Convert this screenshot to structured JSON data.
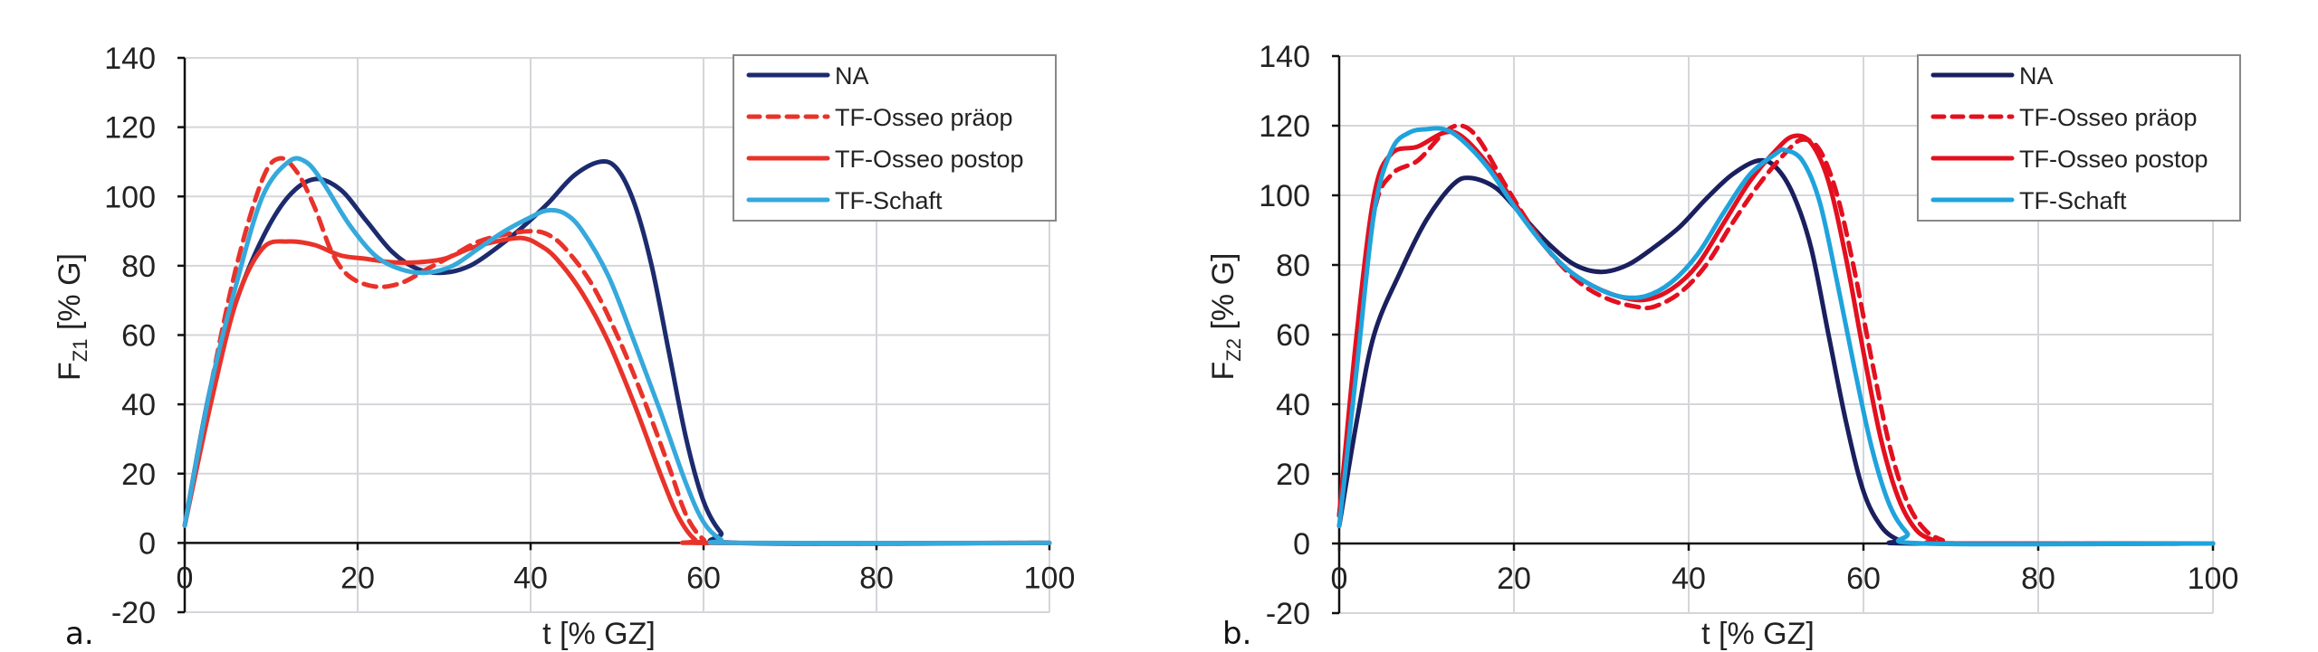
{
  "chart_data": [
    {
      "type": "line",
      "panel_label": "a.",
      "xlabel": "t [% GZ]",
      "ylabel_main": "F",
      "ylabel_sub": "Z1",
      "ylabel_unit": " [% G]",
      "xlim": [
        0,
        100
      ],
      "ylim": [
        -20,
        140
      ],
      "xticks": [
        0,
        20,
        40,
        60,
        80,
        100
      ],
      "yticks": [
        -20,
        0,
        20,
        40,
        60,
        80,
        100,
        120,
        140
      ],
      "grid": true,
      "legend_position": "top-right",
      "series": [
        {
          "name": "NA",
          "color": "#1c2b6e",
          "dashed": false,
          "points": [
            [
              0,
              5
            ],
            [
              3,
              45
            ],
            [
              6,
              70
            ],
            [
              9,
              88
            ],
            [
              12,
              100
            ],
            [
              15,
              105
            ],
            [
              18,
              102
            ],
            [
              21,
              93
            ],
            [
              24,
              84
            ],
            [
              27,
              79
            ],
            [
              30,
              78
            ],
            [
              33,
              80
            ],
            [
              36,
              85
            ],
            [
              39,
              91
            ],
            [
              42,
              98
            ],
            [
              45,
              106
            ],
            [
              48,
              110
            ],
            [
              50,
              108
            ],
            [
              52,
              98
            ],
            [
              54,
              80
            ],
            [
              56,
              55
            ],
            [
              58,
              30
            ],
            [
              60,
              12
            ],
            [
              62,
              3
            ],
            [
              64,
              0
            ],
            [
              100,
              0
            ]
          ]
        },
        {
          "name": "TF-Osseo präop",
          "color": "#e8332a",
          "dashed": true,
          "points": [
            [
              0,
              5
            ],
            [
              3,
              45
            ],
            [
              6,
              80
            ],
            [
              9,
              105
            ],
            [
              11,
              111
            ],
            [
              13,
              107
            ],
            [
              15,
              97
            ],
            [
              17,
              84
            ],
            [
              19,
              77
            ],
            [
              22,
              74
            ],
            [
              25,
              75
            ],
            [
              28,
              79
            ],
            [
              31,
              83
            ],
            [
              34,
              87
            ],
            [
              37,
              89
            ],
            [
              40,
              90
            ],
            [
              42,
              89
            ],
            [
              44,
              85
            ],
            [
              47,
              75
            ],
            [
              50,
              60
            ],
            [
              53,
              42
            ],
            [
              56,
              22
            ],
            [
              58,
              8
            ],
            [
              60,
              1
            ],
            [
              62,
              0
            ],
            [
              100,
              0
            ]
          ]
        },
        {
          "name": "TF-Osseo postop",
          "color": "#e8332a",
          "dashed": false,
          "points": [
            [
              0,
              5
            ],
            [
              3,
              40
            ],
            [
              6,
              70
            ],
            [
              9,
              85
            ],
            [
              12,
              87
            ],
            [
              15,
              86
            ],
            [
              18,
              83
            ],
            [
              21,
              82
            ],
            [
              24,
              81
            ],
            [
              27,
              81
            ],
            [
              30,
              82
            ],
            [
              33,
              85
            ],
            [
              36,
              87
            ],
            [
              39,
              88
            ],
            [
              41,
              86
            ],
            [
              43,
              82
            ],
            [
              46,
              72
            ],
            [
              49,
              58
            ],
            [
              52,
              40
            ],
            [
              55,
              20
            ],
            [
              57,
              8
            ],
            [
              59,
              1
            ],
            [
              61,
              0
            ],
            [
              100,
              0
            ]
          ]
        },
        {
          "name": "TF-Schaft",
          "color": "#35a9dc",
          "dashed": false,
          "points": [
            [
              0,
              5
            ],
            [
              3,
              45
            ],
            [
              6,
              75
            ],
            [
              9,
              100
            ],
            [
              12,
              110
            ],
            [
              14,
              110
            ],
            [
              16,
              104
            ],
            [
              19,
              92
            ],
            [
              22,
              83
            ],
            [
              25,
              79
            ],
            [
              28,
              78
            ],
            [
              31,
              80
            ],
            [
              34,
              85
            ],
            [
              37,
              90
            ],
            [
              40,
              94
            ],
            [
              42,
              96
            ],
            [
              44,
              95
            ],
            [
              46,
              90
            ],
            [
              49,
              77
            ],
            [
              52,
              58
            ],
            [
              55,
              38
            ],
            [
              58,
              17
            ],
            [
              60,
              6
            ],
            [
              62,
              1
            ],
            [
              64,
              0
            ],
            [
              100,
              0
            ]
          ]
        }
      ]
    },
    {
      "type": "line",
      "panel_label": "b.",
      "xlabel": "t [% GZ]",
      "ylabel_main": "F",
      "ylabel_sub": "Z2",
      "ylabel_unit": " [% G]",
      "xlim": [
        0,
        100
      ],
      "ylim": [
        -20,
        140
      ],
      "xticks": [
        0,
        20,
        40,
        60,
        80,
        100
      ],
      "yticks": [
        -20,
        0,
        20,
        40,
        60,
        80,
        100,
        120,
        140
      ],
      "grid": true,
      "legend_position": "top-right",
      "series": [
        {
          "name": "NA",
          "color": "#1a1f5e",
          "dashed": false,
          "points": [
            [
              0,
              5
            ],
            [
              2,
              35
            ],
            [
              4,
              60
            ],
            [
              7,
              78
            ],
            [
              10,
              93
            ],
            [
              13,
              103
            ],
            [
              15,
              105
            ],
            [
              18,
              102
            ],
            [
              21,
              94
            ],
            [
              24,
              86
            ],
            [
              27,
              80
            ],
            [
              30,
              78
            ],
            [
              33,
              80
            ],
            [
              36,
              85
            ],
            [
              39,
              91
            ],
            [
              42,
              99
            ],
            [
              45,
              106
            ],
            [
              48,
              110
            ],
            [
              50,
              108
            ],
            [
              52,
              100
            ],
            [
              54,
              85
            ],
            [
              56,
              60
            ],
            [
              58,
              35
            ],
            [
              60,
              15
            ],
            [
              62,
              5
            ],
            [
              64,
              1
            ],
            [
              66,
              0
            ],
            [
              100,
              0
            ]
          ]
        },
        {
          "name": "TF-Osseo präop",
          "color": "#e3101f",
          "dashed": true,
          "points": [
            [
              0,
              8
            ],
            [
              2,
              55
            ],
            [
              4,
              95
            ],
            [
              6,
              106
            ],
            [
              9,
              110
            ],
            [
              12,
              118
            ],
            [
              14,
              120
            ],
            [
              16,
              116
            ],
            [
              19,
              103
            ],
            [
              22,
              91
            ],
            [
              25,
              81
            ],
            [
              28,
              74
            ],
            [
              31,
              70
            ],
            [
              34,
              68
            ],
            [
              36,
              68
            ],
            [
              39,
              72
            ],
            [
              42,
              80
            ],
            [
              45,
              92
            ],
            [
              48,
              103
            ],
            [
              51,
              112
            ],
            [
              53,
              116
            ],
            [
              55,
              113
            ],
            [
              57,
              100
            ],
            [
              59,
              78
            ],
            [
              61,
              52
            ],
            [
              63,
              28
            ],
            [
              65,
              12
            ],
            [
              67,
              4
            ],
            [
              69,
              1
            ],
            [
              71,
              0
            ],
            [
              100,
              0
            ]
          ]
        },
        {
          "name": "TF-Osseo postop",
          "color": "#e3101f",
          "dashed": false,
          "points": [
            [
              0,
              8
            ],
            [
              2,
              60
            ],
            [
              4,
              100
            ],
            [
              6,
              112
            ],
            [
              9,
              114
            ],
            [
              12,
              118
            ],
            [
              14,
              117
            ],
            [
              17,
              109
            ],
            [
              20,
              98
            ],
            [
              23,
              87
            ],
            [
              26,
              79
            ],
            [
              29,
              74
            ],
            [
              32,
              71
            ],
            [
              35,
              70
            ],
            [
              38,
              73
            ],
            [
              41,
              80
            ],
            [
              44,
              92
            ],
            [
              47,
              104
            ],
            [
              50,
              113
            ],
            [
              52,
              117
            ],
            [
              54,
              115
            ],
            [
              56,
              104
            ],
            [
              58,
              82
            ],
            [
              60,
              55
            ],
            [
              62,
              30
            ],
            [
              64,
              13
            ],
            [
              66,
              4
            ],
            [
              68,
              1
            ],
            [
              70,
              0
            ],
            [
              100,
              0
            ]
          ]
        },
        {
          "name": "TF-Schaft",
          "color": "#1fa3dc",
          "dashed": false,
          "points": [
            [
              0,
              5
            ],
            [
              2,
              50
            ],
            [
              4,
              95
            ],
            [
              6,
              113
            ],
            [
              8,
              118
            ],
            [
              10,
              119
            ],
            [
              12,
              119
            ],
            [
              14,
              116
            ],
            [
              17,
              108
            ],
            [
              20,
              97
            ],
            [
              23,
              87
            ],
            [
              26,
              79
            ],
            [
              29,
              74
            ],
            [
              32,
              71
            ],
            [
              35,
              71
            ],
            [
              38,
              75
            ],
            [
              41,
              83
            ],
            [
              44,
              95
            ],
            [
              47,
              106
            ],
            [
              50,
              112
            ],
            [
              51,
              113
            ],
            [
              53,
              110
            ],
            [
              55,
              98
            ],
            [
              57,
              75
            ],
            [
              59,
              50
            ],
            [
              61,
              27
            ],
            [
              63,
              11
            ],
            [
              65,
              3
            ],
            [
              67,
              0
            ],
            [
              100,
              0
            ]
          ]
        }
      ]
    }
  ]
}
